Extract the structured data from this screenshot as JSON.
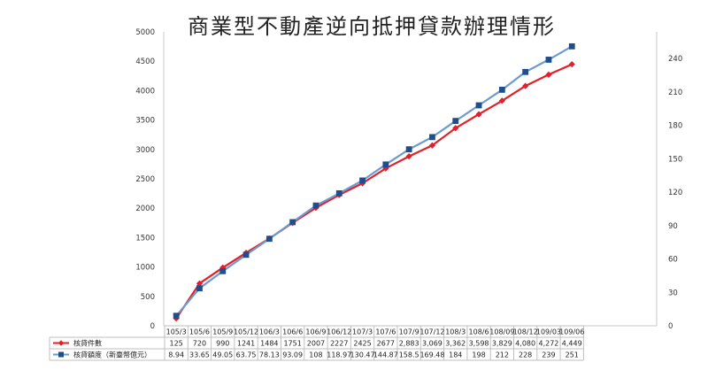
{
  "chart_data": {
    "type": "line",
    "title": "商業型不動產逆向抵押貸款辦理情形",
    "categories": [
      "105/3",
      "105/6",
      "105/9",
      "105/12",
      "106/3",
      "106/6",
      "106/9",
      "106/12",
      "107/3",
      "107/6",
      "107/9",
      "107/12",
      "108/3",
      "108/6",
      "108/09",
      "108/12",
      "109/03",
      "109/06"
    ],
    "y_left": {
      "min": 0,
      "max": 5000,
      "ticks": [
        "0",
        "500",
        "1000",
        "1500",
        "2000",
        "2500",
        "3000",
        "3500",
        "4000",
        "4500",
        "5000"
      ]
    },
    "y_right": {
      "min": 0,
      "max": 264,
      "ticks": [
        "0",
        "30",
        "60",
        "90",
        "120",
        "150",
        "180",
        "210",
        "240"
      ]
    },
    "grid": false,
    "legend": "table-below",
    "series": [
      {
        "name": "核貸件數",
        "axis": "left",
        "color": "#e3202a",
        "marker": "diamond",
        "values": [
          125,
          720,
          990,
          1241,
          1484,
          1751,
          2007,
          2227,
          2425,
          2677,
          2883,
          3069,
          3362,
          3598,
          3829,
          4080,
          4272,
          4449
        ],
        "labels": [
          "125",
          "720",
          "990",
          "1241",
          "1484",
          "1751",
          "2007",
          "2227",
          "2425",
          "2677",
          "2,883",
          "3,069",
          "3,362",
          "3,598",
          "3,829",
          "4,080",
          "4,272",
          "4,449"
        ]
      },
      {
        "name": "核貸額度（新臺幣億元）",
        "axis": "right",
        "color": "#6b9bd1",
        "marker_color": "#1f4e8c",
        "marker": "square",
        "values": [
          8.94,
          33.65,
          49.05,
          63.75,
          78.13,
          93.09,
          108,
          118.97,
          130.47,
          144.87,
          158.5,
          169.48,
          184,
          198,
          212,
          228,
          239,
          251
        ],
        "labels": [
          "8.94",
          "33.65",
          "49.05",
          "63.75",
          "78.13",
          "93.09",
          "108",
          "118.97",
          "130.47",
          "144.87",
          "158.5",
          "169.48",
          "184",
          "198",
          "212",
          "228",
          "239",
          "251"
        ]
      }
    ]
  }
}
